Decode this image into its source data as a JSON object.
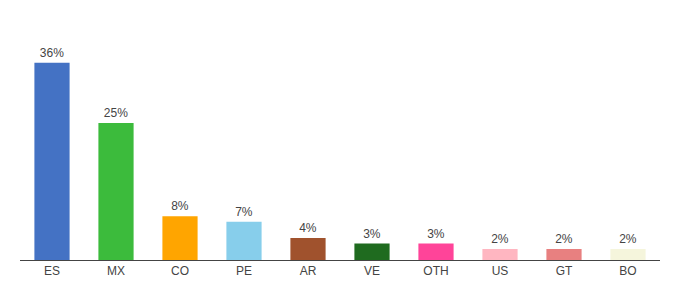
{
  "chart_data": {
    "type": "bar",
    "categories": [
      "ES",
      "MX",
      "CO",
      "PE",
      "AR",
      "VE",
      "OTH",
      "US",
      "GT",
      "BO"
    ],
    "values": [
      36,
      25,
      8,
      7,
      4,
      3,
      3,
      2,
      2,
      2
    ],
    "value_labels": [
      "36%",
      "25%",
      "8%",
      "7%",
      "4%",
      "3%",
      "3%",
      "2%",
      "2%",
      "2%"
    ],
    "colors": [
      "#4472C4",
      "#3CBB3C",
      "#FFA500",
      "#87CEEB",
      "#A0522D",
      "#1F6B1F",
      "#FF4499",
      "#FFB6C1",
      "#E88080",
      "#F5F5DC"
    ],
    "ylim": [
      0,
      42
    ],
    "data_labels": true,
    "tick_labels": "x",
    "grid": false
  }
}
